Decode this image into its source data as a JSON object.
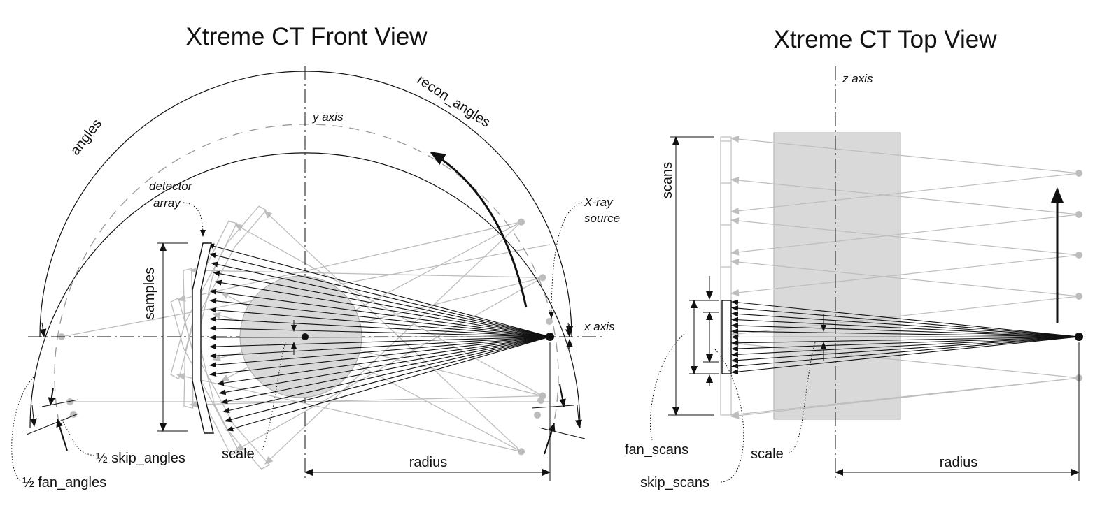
{
  "front_view": {
    "title": "Xtreme CT Front View",
    "labels": {
      "angles": "angles",
      "recon_angles": "recon_angles",
      "y_axis": "y axis",
      "x_axis": "x axis",
      "detector_line1": "detector",
      "detector_line2": "array",
      "xray_line1": "X-ray",
      "xray_line2": "source",
      "samples": "samples",
      "scale": "scale",
      "radius": "radius",
      "half_skip_angles": "½ skip_angles",
      "half_fan_angles": "½ fan_angles"
    }
  },
  "top_view": {
    "title": "Xtreme CT Top View",
    "labels": {
      "z_axis": "z axis",
      "scans": "scans",
      "fan_scans": "fan_scans",
      "skip_scans": "skip_scans",
      "scale": "scale",
      "radius": "radius"
    }
  },
  "colors": {
    "ink": "#111111",
    "ghost": "#bdbdbd",
    "object_fill": "#d9d9d9"
  }
}
